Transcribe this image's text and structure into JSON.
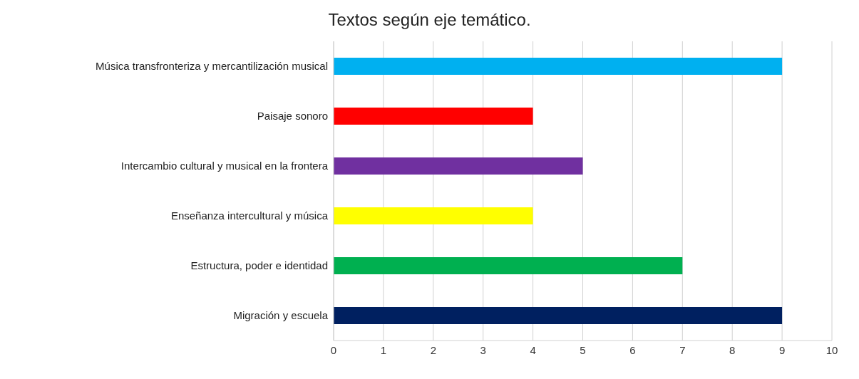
{
  "chart_data": {
    "type": "bar",
    "orientation": "horizontal",
    "title": "Textos según eje temático.",
    "categories": [
      "Música transfronteriza y mercantilización musical",
      "Paisaje sonoro",
      "Intercambio cultural y musical en la frontera",
      "Enseñanza intercultural y música",
      "Estructura, poder e identidad",
      "Migración y escuela"
    ],
    "values": [
      9,
      4,
      5,
      4,
      7,
      9
    ],
    "colors": [
      "#00b0f0",
      "#ff0000",
      "#7030a0",
      "#ffff00",
      "#00b050",
      "#002060"
    ],
    "xlim": [
      0,
      10
    ],
    "xticks": [
      0,
      1,
      2,
      3,
      4,
      5,
      6,
      7,
      8,
      9,
      10
    ],
    "grid": "x"
  }
}
